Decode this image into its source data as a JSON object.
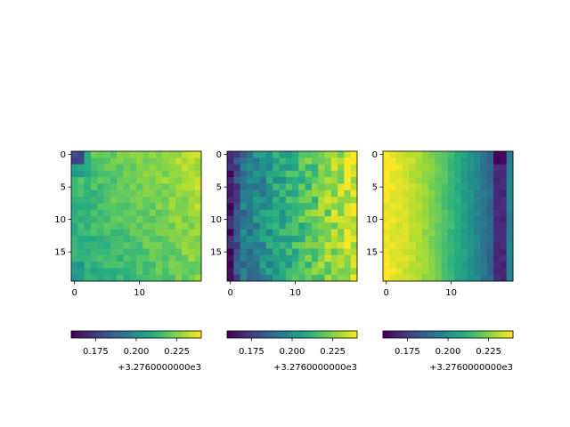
{
  "chart_data": [
    {
      "type": "heatmap",
      "title": "",
      "xlabel": "",
      "ylabel": "",
      "shape": [
        20,
        20
      ],
      "xticks": [
        0,
        10
      ],
      "yticks": [
        0,
        5,
        10,
        15
      ],
      "grid": false,
      "colormap": "viridis",
      "pattern": "bright-right-top",
      "colorbar": {
        "range": [
          3276.16,
          3276.24
        ],
        "ticks": [
          "0.175",
          "0.200",
          "0.225"
        ],
        "offset": "+3.2760000000e3",
        "orientation": "horizontal",
        "placement": "bottom"
      }
    },
    {
      "type": "heatmap",
      "title": "",
      "xlabel": "",
      "ylabel": "",
      "shape": [
        20,
        20
      ],
      "xticks": [
        0,
        10
      ],
      "yticks": [
        0,
        5,
        10,
        15
      ],
      "grid": false,
      "colormap": "viridis",
      "pattern": "dark-left-bright-right",
      "colorbar": {
        "range": [
          3276.16,
          3276.24
        ],
        "ticks": [
          "0.175",
          "0.200",
          "0.225"
        ],
        "offset": "+3.2760000000e3",
        "orientation": "horizontal",
        "placement": "bottom"
      }
    },
    {
      "type": "heatmap",
      "title": "",
      "xlabel": "",
      "ylabel": "",
      "shape": [
        20,
        20
      ],
      "xticks": [
        0,
        10
      ],
      "yticks": [
        0,
        5,
        10,
        15
      ],
      "grid": false,
      "colormap": "viridis",
      "pattern": "bright-left-dark-right",
      "colorbar": {
        "range": [
          3276.16,
          3276.24
        ],
        "ticks": [
          "0.175",
          "0.200",
          "0.225"
        ],
        "offset": "+3.2760000000e3",
        "orientation": "horizontal",
        "placement": "bottom"
      }
    }
  ]
}
